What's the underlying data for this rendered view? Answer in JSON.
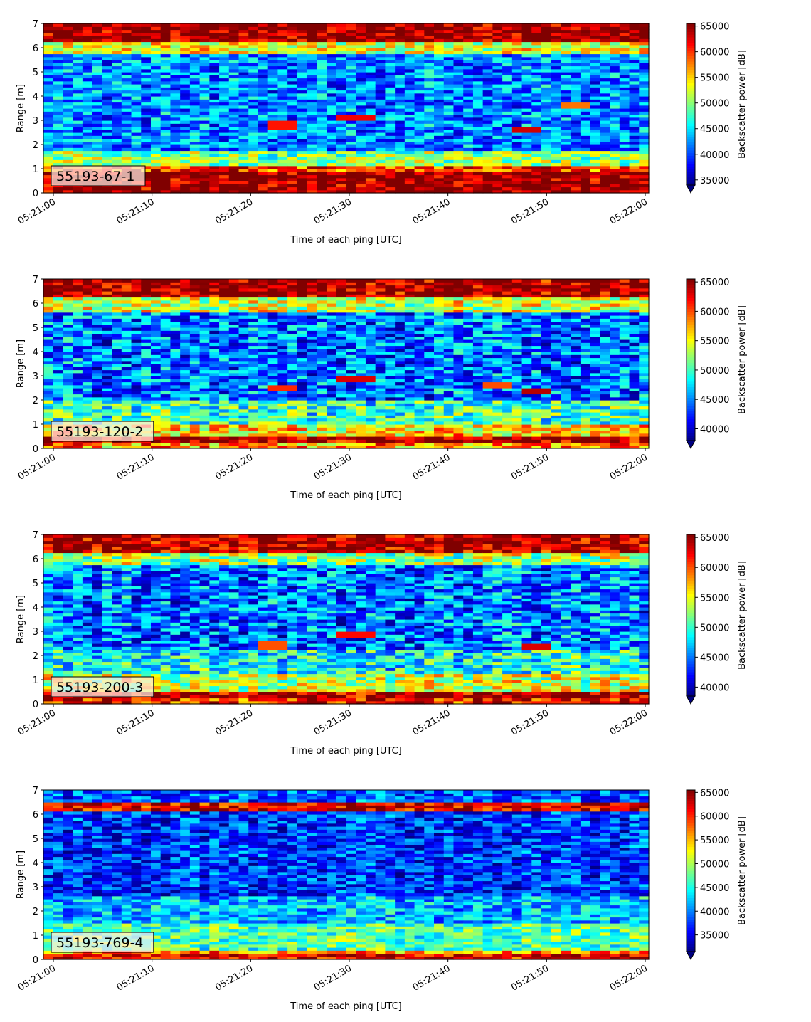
{
  "chart_data": [
    {
      "type": "heatmap",
      "label": "55193-67-1",
      "xlabel": "Time of each ping [UTC]",
      "ylabel": "Range [m]",
      "x_range": [
        "05:21:00",
        "05:22:00"
      ],
      "x_ticks": [
        "05:21:00",
        "05:21:10",
        "05:21:20",
        "05:21:30",
        "05:21:40",
        "05:21:50",
        "05:22:00"
      ],
      "ylim": [
        0,
        7
      ],
      "y_ticks": [
        "0",
        "1",
        "2",
        "3",
        "4",
        "5",
        "6",
        "7"
      ],
      "colorbar_label": "Backscatter power [dB]",
      "colorbar_range": [
        34000,
        65500
      ],
      "colorbar_ticks": [
        "35000",
        "40000",
        "45000",
        "50000",
        "55000",
        "60000",
        "65000"
      ],
      "colormap": "jet",
      "colorbar_extend": "min",
      "grid": false,
      "bands": [
        {
          "range_m": [
            0.0,
            0.25
          ],
          "value": 65000
        },
        {
          "range_m": [
            0.25,
            0.9
          ],
          "value": 65000
        },
        {
          "range_m": [
            0.9,
            1.15
          ],
          "value": 60000
        },
        {
          "range_m": [
            1.15,
            1.8
          ],
          "value": 50000
        },
        {
          "range_m": [
            1.8,
            5.8
          ],
          "value": 42000
        },
        {
          "range_m": [
            5.8,
            6.3
          ],
          "value": 53000
        },
        {
          "range_m": [
            6.3,
            7.0
          ],
          "value": 65000
        }
      ],
      "features": [
        {
          "time": "05:21:24",
          "range_m": 2.8,
          "value": 61000
        },
        {
          "time": "05:21:31",
          "range_m": 3.1,
          "value": 62000
        },
        {
          "time": "05:21:48",
          "range_m": 2.6,
          "value": 63000
        },
        {
          "time": "05:21:53",
          "range_m": 3.6,
          "value": 58000
        }
      ]
    },
    {
      "type": "heatmap",
      "label": "55193-120-2",
      "xlabel": "Time of each ping [UTC]",
      "ylabel": "Range [m]",
      "x_range": [
        "05:21:00",
        "05:22:00"
      ],
      "x_ticks": [
        "05:21:00",
        "05:21:10",
        "05:21:20",
        "05:21:30",
        "05:21:40",
        "05:21:50",
        "05:22:00"
      ],
      "ylim": [
        0,
        7
      ],
      "y_ticks": [
        "0",
        "1",
        "2",
        "3",
        "4",
        "5",
        "6",
        "7"
      ],
      "colorbar_label": "Backscatter power [dB]",
      "colorbar_range": [
        38000,
        65500
      ],
      "colorbar_ticks": [
        "40000",
        "45000",
        "50000",
        "55000",
        "60000",
        "65000"
      ],
      "colormap": "jet",
      "colorbar_extend": "min",
      "grid": false,
      "bands": [
        {
          "range_m": [
            0.0,
            0.3
          ],
          "value": 58000
        },
        {
          "range_m": [
            0.3,
            0.55
          ],
          "value": 65000
        },
        {
          "range_m": [
            0.55,
            1.0
          ],
          "value": 56000
        },
        {
          "range_m": [
            1.0,
            2.0
          ],
          "value": 50000
        },
        {
          "range_m": [
            2.0,
            5.6
          ],
          "value": 44500
        },
        {
          "range_m": [
            5.6,
            6.2
          ],
          "value": 54000
        },
        {
          "range_m": [
            6.2,
            7.0
          ],
          "value": 65000
        }
      ],
      "features": [
        {
          "time": "05:21:24",
          "range_m": 2.5,
          "value": 61000
        },
        {
          "time": "05:21:31",
          "range_m": 2.85,
          "value": 63000
        },
        {
          "time": "05:21:45",
          "range_m": 2.6,
          "value": 60000
        },
        {
          "time": "05:21:49",
          "range_m": 2.4,
          "value": 64000
        }
      ]
    },
    {
      "type": "heatmap",
      "label": "55193-200-3",
      "xlabel": "Time of each ping [UTC]",
      "ylabel": "Range [m]",
      "x_range": [
        "05:21:00",
        "05:22:00"
      ],
      "x_ticks": [
        "05:21:00",
        "05:21:10",
        "05:21:20",
        "05:21:30",
        "05:21:40",
        "05:21:50",
        "05:22:00"
      ],
      "ylim": [
        0,
        7
      ],
      "y_ticks": [
        "0",
        "1",
        "2",
        "3",
        "4",
        "5",
        "6",
        "7"
      ],
      "colorbar_label": "Backscatter power [dB]",
      "colorbar_range": [
        38500,
        65500
      ],
      "colorbar_ticks": [
        "40000",
        "45000",
        "50000",
        "55000",
        "60000",
        "65000"
      ],
      "colormap": "jet",
      "colorbar_extend": "min",
      "grid": false,
      "bands": [
        {
          "range_m": [
            0.0,
            0.25
          ],
          "value": 62000
        },
        {
          "range_m": [
            0.25,
            0.5
          ],
          "value": 65000
        },
        {
          "range_m": [
            0.5,
            1.2
          ],
          "value": 54000
        },
        {
          "range_m": [
            1.2,
            2.2
          ],
          "value": 49000
        },
        {
          "range_m": [
            2.2,
            5.8
          ],
          "value": 45000
        },
        {
          "range_m": [
            5.8,
            6.2
          ],
          "value": 53000
        },
        {
          "range_m": [
            6.2,
            7.0
          ],
          "value": 64500
        }
      ],
      "features": [
        {
          "time": "05:21:23",
          "range_m": 2.45,
          "value": 60000
        },
        {
          "time": "05:21:31",
          "range_m": 2.85,
          "value": 62000
        },
        {
          "time": "05:21:49",
          "range_m": 2.4,
          "value": 63000
        }
      ]
    },
    {
      "type": "heatmap",
      "label": "55193-769-4",
      "xlabel": "Time of each ping [UTC]",
      "ylabel": "Range [m]",
      "x_range": [
        "05:21:00",
        "05:22:00"
      ],
      "x_ticks": [
        "05:21:00",
        "05:21:10",
        "05:21:20",
        "05:21:30",
        "05:21:40",
        "05:21:50",
        "05:22:00"
      ],
      "ylim": [
        0,
        7
      ],
      "y_ticks": [
        "0",
        "1",
        "2",
        "3",
        "4",
        "5",
        "6",
        "7"
      ],
      "colorbar_label": "Backscatter power [dB]",
      "colorbar_range": [
        31500,
        65500
      ],
      "colorbar_ticks": [
        "35000",
        "40000",
        "45000",
        "50000",
        "55000",
        "60000",
        "65000"
      ],
      "colormap": "jet",
      "colorbar_extend": "min",
      "grid": false,
      "bands": [
        {
          "range_m": [
            0.0,
            0.2
          ],
          "value": 62000
        },
        {
          "range_m": [
            0.2,
            0.4
          ],
          "value": 57000
        },
        {
          "range_m": [
            0.4,
            1.5
          ],
          "value": 47000
        },
        {
          "range_m": [
            1.5,
            2.6
          ],
          "value": 42000
        },
        {
          "range_m": [
            2.6,
            6.1
          ],
          "value": 37500
        },
        {
          "range_m": [
            6.1,
            6.5
          ],
          "value": 62000
        },
        {
          "range_m": [
            6.5,
            7.0
          ],
          "value": 39000
        }
      ],
      "features": []
    }
  ]
}
